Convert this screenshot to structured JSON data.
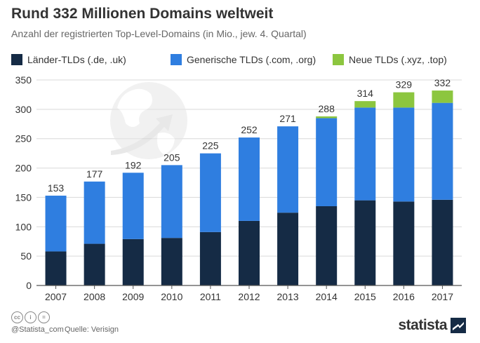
{
  "title": "Rund 332 Millionen Domains weltweit",
  "subtitle": "Anzahl der registrierten Top-Level-Domains (in Mio., jew. 4. Quartal)",
  "footer": {
    "cc_icons": [
      "cc",
      "i",
      "="
    ],
    "handle": "@Statista_com",
    "source": "Quelle: Verisign",
    "brand": "statista"
  },
  "colors": {
    "laender": "#152b45",
    "generisch": "#2f7ee0",
    "neu": "#8cc63f",
    "grid": "#d9d9d9",
    "axis": "#555555"
  },
  "chart_data": {
    "type": "bar",
    "stacked": true,
    "categories": [
      "2007",
      "2008",
      "2009",
      "2010",
      "2011",
      "2012",
      "2013",
      "2014",
      "2015",
      "2016",
      "2017"
    ],
    "series": [
      {
        "name": "Länder-TLDs (.de, .uk)",
        "color": "#152b45",
        "values": [
          58,
          71,
          79,
          81,
          91,
          110,
          124,
          135,
          145,
          143,
          146
        ]
      },
      {
        "name": "Generische TLDs (.com, .org)",
        "color": "#2f7ee0",
        "values": [
          95,
          106,
          113,
          124,
          134,
          142,
          147,
          150,
          158,
          160,
          165
        ]
      },
      {
        "name": "Neue TLDs (.xyz, .top)",
        "color": "#8cc63f",
        "values": [
          0,
          0,
          0,
          0,
          0,
          0,
          0,
          3,
          11,
          26,
          21
        ]
      }
    ],
    "totals": [
      153,
      177,
      192,
      205,
      225,
      252,
      271,
      288,
      314,
      329,
      332
    ],
    "ylim": [
      0,
      350
    ],
    "yticks": [
      0,
      50,
      100,
      150,
      200,
      250,
      300,
      350
    ],
    "grid": true,
    "legend": "top"
  }
}
